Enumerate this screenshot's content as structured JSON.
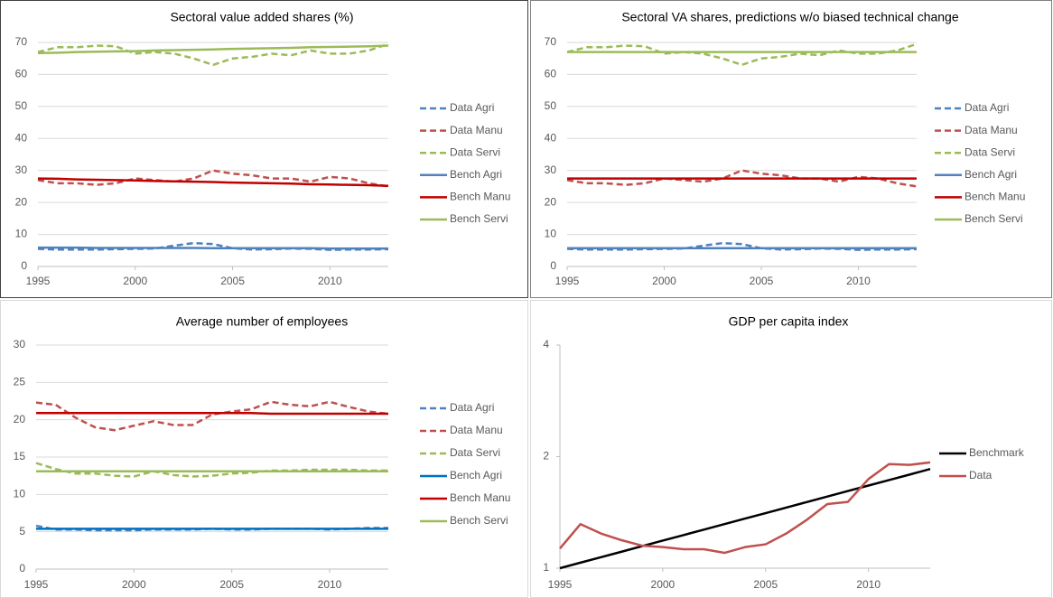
{
  "chart_data": [
    {
      "type": "line",
      "title": "Sectoral value added shares (%)",
      "x": [
        1995,
        1996,
        1997,
        1998,
        1999,
        2000,
        2001,
        2002,
        2003,
        2004,
        2005,
        2006,
        2007,
        2008,
        2009,
        2010,
        2011,
        2012,
        2013
      ],
      "xlim": [
        1995,
        2013
      ],
      "xticks": [
        1995,
        2000,
        2005,
        2010
      ],
      "ylim": [
        0,
        70
      ],
      "yticks": [
        0,
        10,
        20,
        30,
        40,
        50,
        60,
        70
      ],
      "grid": true,
      "log_scale": false,
      "legend": "right",
      "series": [
        {
          "name": "Data Agri",
          "color": "#4f81bd",
          "dashed": true,
          "values": [
            5.5,
            5.3,
            5.3,
            5.3,
            5.4,
            5.5,
            5.6,
            6.5,
            7.3,
            7,
            5.7,
            5.3,
            5.4,
            5.6,
            5.5,
            5.2,
            5.3,
            5.3,
            5.4
          ]
        },
        {
          "name": "Data Manu",
          "color": "#c0504d",
          "dashed": true,
          "values": [
            27,
            26,
            26,
            25.5,
            26,
            27.5,
            27,
            26.5,
            27.5,
            30,
            29,
            28.5,
            27.5,
            27.5,
            26.5,
            28,
            27.5,
            26,
            25
          ]
        },
        {
          "name": "Data Servi",
          "color": "#9bbb59",
          "dashed": true,
          "values": [
            67,
            68.5,
            68.5,
            69,
            68.8,
            66.5,
            67,
            66.5,
            65,
            63,
            65,
            65.5,
            66.5,
            66,
            67.5,
            66.5,
            66.5,
            67.5,
            69.5
          ]
        },
        {
          "name": "Bench Agri",
          "color": "#4f81bd",
          "dashed": false,
          "values": [
            5.9,
            5.9,
            5.9,
            5.8,
            5.8,
            5.8,
            5.8,
            5.8,
            5.8,
            5.7,
            5.7,
            5.7,
            5.7,
            5.7,
            5.7,
            5.6,
            5.6,
            5.6,
            5.6
          ]
        },
        {
          "name": "Bench Manu",
          "color": "#c00000",
          "dashed": false,
          "values": [
            27.5,
            27.4,
            27.2,
            27.1,
            27,
            26.9,
            26.7,
            26.6,
            26.5,
            26.4,
            26.2,
            26.1,
            26,
            25.9,
            25.7,
            25.6,
            25.5,
            25.4,
            25.2
          ]
        },
        {
          "name": "Bench Servi",
          "color": "#9bbb59",
          "dashed": false,
          "values": [
            66.7,
            66.8,
            67,
            67.1,
            67.2,
            67.3,
            67.5,
            67.6,
            67.7,
            67.8,
            68,
            68.1,
            68.2,
            68.3,
            68.5,
            68.6,
            68.7,
            68.8,
            69
          ]
        }
      ]
    },
    {
      "type": "line",
      "title": "Sectoral VA shares, predictions w/o biased technical change",
      "x": [
        1995,
        1996,
        1997,
        1998,
        1999,
        2000,
        2001,
        2002,
        2003,
        2004,
        2005,
        2006,
        2007,
        2008,
        2009,
        2010,
        2011,
        2012,
        2013
      ],
      "xlim": [
        1995,
        2013
      ],
      "xticks": [
        1995,
        2000,
        2005,
        2010
      ],
      "ylim": [
        0,
        70
      ],
      "yticks": [
        0,
        10,
        20,
        30,
        40,
        50,
        60,
        70
      ],
      "grid": true,
      "log_scale": false,
      "legend": "right",
      "series": [
        {
          "name": "Data Agri",
          "color": "#4f81bd",
          "dashed": true,
          "values": [
            5.5,
            5.3,
            5.3,
            5.3,
            5.4,
            5.5,
            5.6,
            6.5,
            7.3,
            7,
            5.7,
            5.3,
            5.4,
            5.6,
            5.5,
            5.2,
            5.3,
            5.3,
            5.4
          ]
        },
        {
          "name": "Data Manu",
          "color": "#c0504d",
          "dashed": true,
          "values": [
            27,
            26,
            26,
            25.5,
            26,
            27.5,
            27,
            26.5,
            27.5,
            30,
            29,
            28.5,
            27.5,
            27.5,
            26.5,
            28,
            27.5,
            26,
            25
          ]
        },
        {
          "name": "Data Servi",
          "color": "#9bbb59",
          "dashed": true,
          "values": [
            67,
            68.5,
            68.5,
            69,
            68.8,
            66.5,
            67,
            66.5,
            65,
            63,
            65,
            65.5,
            66.5,
            66,
            67.5,
            66.5,
            66.5,
            67.5,
            69.5
          ]
        },
        {
          "name": "Bench Agri",
          "color": "#4f81bd",
          "dashed": false,
          "values": [
            5.7,
            5.7,
            5.7,
            5.7,
            5.7,
            5.7,
            5.7,
            5.7,
            5.7,
            5.7,
            5.7,
            5.7,
            5.7,
            5.7,
            5.7,
            5.7,
            5.7,
            5.7,
            5.7
          ]
        },
        {
          "name": "Bench Manu",
          "color": "#c00000",
          "dashed": false,
          "values": [
            27.5,
            27.5,
            27.5,
            27.5,
            27.5,
            27.5,
            27.5,
            27.5,
            27.5,
            27.5,
            27.5,
            27.5,
            27.5,
            27.5,
            27.5,
            27.5,
            27.5,
            27.5,
            27.5
          ]
        },
        {
          "name": "Bench Servi",
          "color": "#9bbb59",
          "dashed": false,
          "values": [
            67,
            67,
            67,
            67,
            67,
            67,
            67,
            67,
            67,
            67,
            67,
            67,
            67,
            67,
            67,
            67,
            67,
            67,
            67
          ]
        }
      ]
    },
    {
      "type": "line",
      "title": "Average number of employees",
      "x": [
        1995,
        1996,
        1997,
        1998,
        1999,
        2000,
        2001,
        2002,
        2003,
        2004,
        2005,
        2006,
        2007,
        2008,
        2009,
        2010,
        2011,
        2012,
        2013
      ],
      "xlim": [
        1995,
        2013
      ],
      "xticks": [
        1995,
        2000,
        2005,
        2010
      ],
      "ylim": [
        0,
        30
      ],
      "yticks": [
        0,
        5,
        10,
        15,
        20,
        25,
        30
      ],
      "grid": true,
      "log_scale": false,
      "legend": "right",
      "series": [
        {
          "name": "Data Agri",
          "color": "#4f81bd",
          "dashed": true,
          "values": [
            5.8,
            5.3,
            5.3,
            5.2,
            5.2,
            5.2,
            5.3,
            5.3,
            5.3,
            5.4,
            5.3,
            5.3,
            5.4,
            5.4,
            5.4,
            5.3,
            5.4,
            5.5,
            5.5
          ]
        },
        {
          "name": "Data Manu",
          "color": "#c0504d",
          "dashed": true,
          "values": [
            22.3,
            22,
            20.3,
            19,
            18.6,
            19.2,
            19.8,
            19.3,
            19.3,
            20.7,
            21.1,
            21.4,
            22.4,
            22,
            21.8,
            22.4,
            21.7,
            21.1,
            20.8
          ]
        },
        {
          "name": "Data Servi",
          "color": "#9bbb59",
          "dashed": true,
          "values": [
            14.2,
            13.4,
            12.8,
            12.8,
            12.5,
            12.4,
            13.1,
            12.6,
            12.4,
            12.5,
            12.8,
            12.9,
            13.2,
            13.2,
            13.3,
            13.3,
            13.3,
            13.2,
            13.2
          ]
        },
        {
          "name": "Bench Agri",
          "color": "#0070c0",
          "dashed": false,
          "values": [
            5.4,
            5.4,
            5.4,
            5.4,
            5.4,
            5.4,
            5.4,
            5.4,
            5.4,
            5.4,
            5.4,
            5.4,
            5.4,
            5.4,
            5.4,
            5.4,
            5.4,
            5.4,
            5.4
          ]
        },
        {
          "name": "Bench Manu",
          "color": "#c00000",
          "dashed": false,
          "values": [
            20.9,
            20.9,
            20.9,
            20.9,
            20.9,
            20.9,
            20.9,
            20.9,
            20.9,
            20.9,
            20.9,
            20.9,
            20.8,
            20.8,
            20.8,
            20.8,
            20.8,
            20.8,
            20.8
          ]
        },
        {
          "name": "Bench Servi",
          "color": "#9bbb59",
          "dashed": false,
          "values": [
            13.1,
            13.1,
            13.1,
            13.1,
            13.1,
            13.1,
            13.1,
            13.1,
            13.1,
            13.1,
            13.1,
            13.1,
            13.1,
            13.1,
            13.1,
            13.1,
            13.1,
            13.1,
            13.1
          ]
        }
      ]
    },
    {
      "type": "line",
      "title": "GDP per capita index",
      "x": [
        1995,
        1996,
        1997,
        1998,
        1999,
        2000,
        2001,
        2002,
        2003,
        2004,
        2005,
        2006,
        2007,
        2008,
        2009,
        2010,
        2011,
        2012,
        2013
      ],
      "xlim": [
        1995,
        2013
      ],
      "xticks": [
        1995,
        2000,
        2005,
        2010
      ],
      "ylim": [
        1,
        4
      ],
      "yticks": [
        1,
        2,
        4
      ],
      "grid": false,
      "log_scale": true,
      "legend": "right",
      "series": [
        {
          "name": "Benchmark",
          "color": "#000000",
          "dashed": false,
          "values": [
            1,
            1.035,
            1.071,
            1.108,
            1.147,
            1.187,
            1.228,
            1.271,
            1.315,
            1.361,
            1.408,
            1.457,
            1.508,
            1.561,
            1.615,
            1.671,
            1.729,
            1.789,
            1.852
          ]
        },
        {
          "name": "Data",
          "color": "#c0504d",
          "dashed": false,
          "values": [
            1.13,
            1.315,
            1.24,
            1.19,
            1.15,
            1.14,
            1.125,
            1.125,
            1.1,
            1.14,
            1.16,
            1.24,
            1.35,
            1.49,
            1.51,
            1.74,
            1.91,
            1.9,
            1.93
          ]
        }
      ]
    }
  ]
}
